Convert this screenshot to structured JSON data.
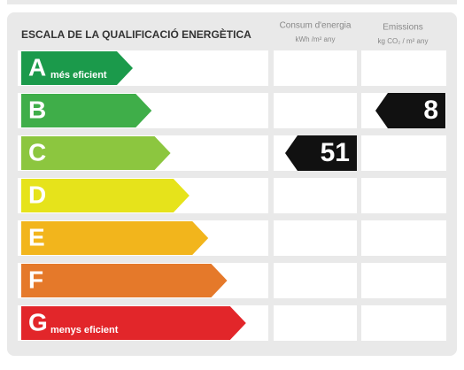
{
  "header": {
    "title": "ESCALA DE LA QUALIFICACIÓ ENERGÈTICA",
    "consumption": {
      "title": "Consum d'energia",
      "unit": "kWh /m² any"
    },
    "emissions": {
      "title": "Emissions",
      "unit": "kg CO₂ / m² any"
    }
  },
  "rows": [
    {
      "letter": "A",
      "note": "més eficient",
      "color": "#1b9a4b"
    },
    {
      "letter": "B",
      "color": "#3fae49",
      "emissions": 8
    },
    {
      "letter": "C",
      "color": "#8cc63f",
      "consumption": 51
    },
    {
      "letter": "D",
      "color": "#e6e31b"
    },
    {
      "letter": "E",
      "color": "#f2b51c"
    },
    {
      "letter": "F",
      "color": "#e5792a"
    },
    {
      "letter": "G",
      "note": "menys eficient",
      "color": "#e2262a"
    }
  ]
}
